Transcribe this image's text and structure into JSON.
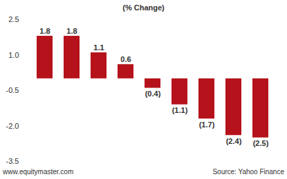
{
  "chart_data": {
    "type": "bar",
    "title": "(% Change)",
    "categories": [
      null,
      null,
      null,
      null,
      null,
      null,
      null,
      null,
      null
    ],
    "values": [
      1.8,
      1.8,
      1.1,
      0.6,
      -0.4,
      -1.1,
      -1.7,
      -2.4,
      -2.5
    ],
    "value_labels": [
      "1.8",
      "1.8",
      "1.1",
      "0.6",
      "(0.4)",
      "(1.1)",
      "(1.7)",
      "(2.4)",
      "(2.5)"
    ],
    "data_labels": true,
    "color": "#b5121b",
    "ylim": [
      -3.5,
      2.5
    ],
    "yticks": [
      2.5,
      {
        "value": 1,
        "label": "1.0"
      },
      -0.5,
      {
        "value": -2,
        "label": "-2.0"
      },
      -3.5
    ],
    "grid": false,
    "tick_labels": "y",
    "annotations": [
      "www.equitymaster.com",
      "Source: Yahoo Finance"
    ]
  }
}
